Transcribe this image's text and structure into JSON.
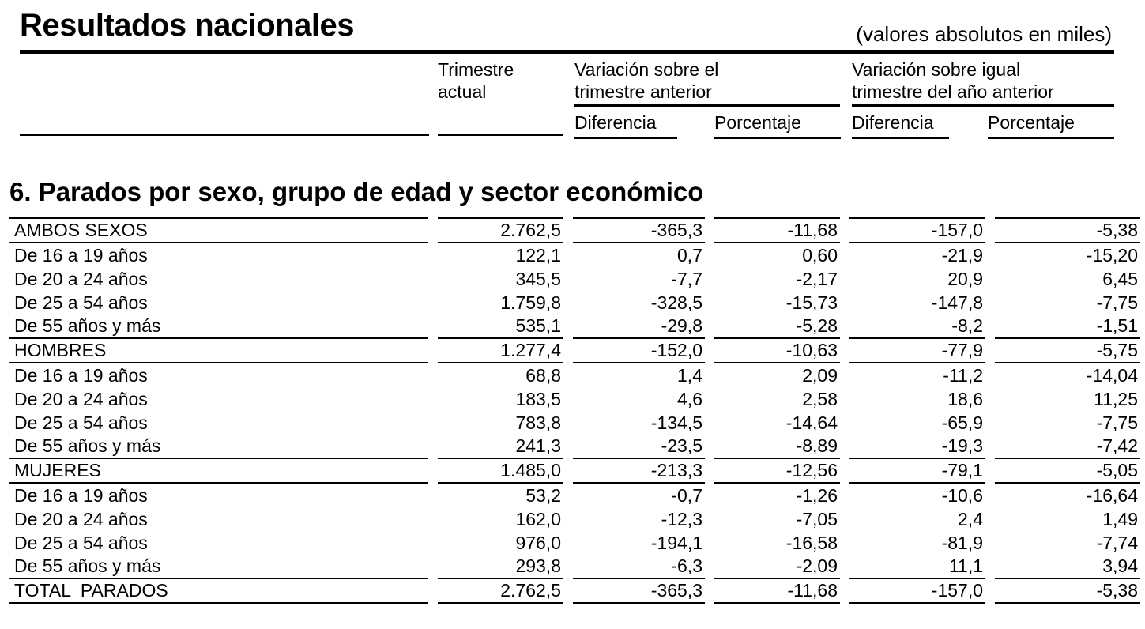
{
  "header": {
    "title": "Resultados nacionales",
    "note": "(valores absolutos en miles)",
    "columns": {
      "current_quarter": {
        "line1": "Trimestre",
        "line2": "actual"
      },
      "vs_prev_quarter": {
        "line1": "Variación sobre el",
        "line2": "trimestre anterior"
      },
      "vs_prev_year": {
        "line1": "Variación sobre igual",
        "line2": "trimestre del año anterior"
      },
      "subheaders": [
        "Diferencia",
        "Porcentaje",
        "Diferencia",
        "Porcentaje"
      ]
    }
  },
  "section": {
    "title": "6. Parados por sexo, grupo de edad y sector económico"
  },
  "table": {
    "rows": [
      {
        "label": "AMBOS SEXOS",
        "values": [
          "2.762,5",
          "-365,3",
          "-11,68",
          "-157,0",
          "-5,38"
        ],
        "rule": true
      },
      {
        "label": "De 16 a 19 años",
        "values": [
          "122,1",
          "0,7",
          "0,60",
          "-21,9",
          "-15,20"
        ],
        "rule": false
      },
      {
        "label": "De 20 a 24 años",
        "values": [
          "345,5",
          "-7,7",
          "-2,17",
          "20,9",
          "6,45"
        ],
        "rule": false
      },
      {
        "label": "De 25 a 54 años",
        "values": [
          "1.759,8",
          "-328,5",
          "-15,73",
          "-147,8",
          "-7,75"
        ],
        "rule": false
      },
      {
        "label": "De 55 años y más",
        "values": [
          "535,1",
          "-29,8",
          "-5,28",
          "-8,2",
          "-1,51"
        ],
        "rule": true
      },
      {
        "label": "HOMBRES",
        "values": [
          "1.277,4",
          "-152,0",
          "-10,63",
          "-77,9",
          "-5,75"
        ],
        "rule": true
      },
      {
        "label": "De 16 a 19 años",
        "values": [
          "68,8",
          "1,4",
          "2,09",
          "-11,2",
          "-14,04"
        ],
        "rule": false
      },
      {
        "label": "De 20 a 24 años",
        "values": [
          "183,5",
          "4,6",
          "2,58",
          "18,6",
          "11,25"
        ],
        "rule": false
      },
      {
        "label": "De 25 a 54 años",
        "values": [
          "783,8",
          "-134,5",
          "-14,64",
          "-65,9",
          "-7,75"
        ],
        "rule": false
      },
      {
        "label": "De 55 años y más",
        "values": [
          "241,3",
          "-23,5",
          "-8,89",
          "-19,3",
          "-7,42"
        ],
        "rule": true
      },
      {
        "label": "MUJERES",
        "values": [
          "1.485,0",
          "-213,3",
          "-12,56",
          "-79,1",
          "-5,05"
        ],
        "rule": true
      },
      {
        "label": "De 16 a 19 años",
        "values": [
          "53,2",
          "-0,7",
          "-1,26",
          "-10,6",
          "-16,64"
        ],
        "rule": false
      },
      {
        "label": "De 20 a 24 años",
        "values": [
          "162,0",
          "-12,3",
          "-7,05",
          "2,4",
          "1,49"
        ],
        "rule": false
      },
      {
        "label": "De 25 a 54 años",
        "values": [
          "976,0",
          "-194,1",
          "-16,58",
          "-81,9",
          "-7,74"
        ],
        "rule": false
      },
      {
        "label": "De 55 años y más",
        "values": [
          "293,8",
          "-6,3",
          "-2,09",
          "11,1",
          "3,94"
        ],
        "rule": true
      },
      {
        "label": "TOTAL  PARADOS",
        "values": [
          "2.762,5",
          "-365,3",
          "-11,68",
          "-157,0",
          "-5,38"
        ],
        "rule": true
      }
    ]
  }
}
